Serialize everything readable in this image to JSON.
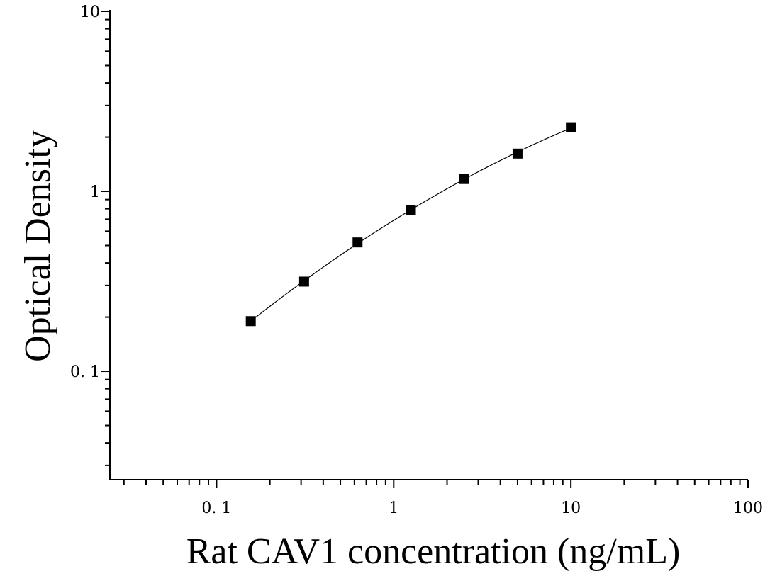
{
  "chart_data": {
    "type": "scatter",
    "xlabel": "Rat CAV1 concentration (ng/mL)",
    "ylabel": "Optical Density",
    "x_scale": "log",
    "y_scale": "log",
    "xlim": [
      0.025,
      100
    ],
    "ylim": [
      0.025,
      10
    ],
    "x_ticks": [
      {
        "value": 0.1,
        "label": "0. 1"
      },
      {
        "value": 1,
        "label": "1"
      },
      {
        "value": 10,
        "label": "10"
      },
      {
        "value": 100,
        "label": "100"
      }
    ],
    "y_ticks": [
      {
        "value": 0.1,
        "label": "0. 1"
      },
      {
        "value": 1,
        "label": "1"
      },
      {
        "value": 10,
        "label": "10"
      }
    ],
    "grid": false,
    "marker": "square",
    "fit_curve": true,
    "color": "#000000",
    "series": [
      {
        "x": [
          0.156,
          0.312,
          0.625,
          1.25,
          2.5,
          5,
          10
        ],
        "y": [
          0.19,
          0.315,
          0.52,
          0.79,
          1.17,
          1.62,
          2.27
        ]
      }
    ]
  }
}
